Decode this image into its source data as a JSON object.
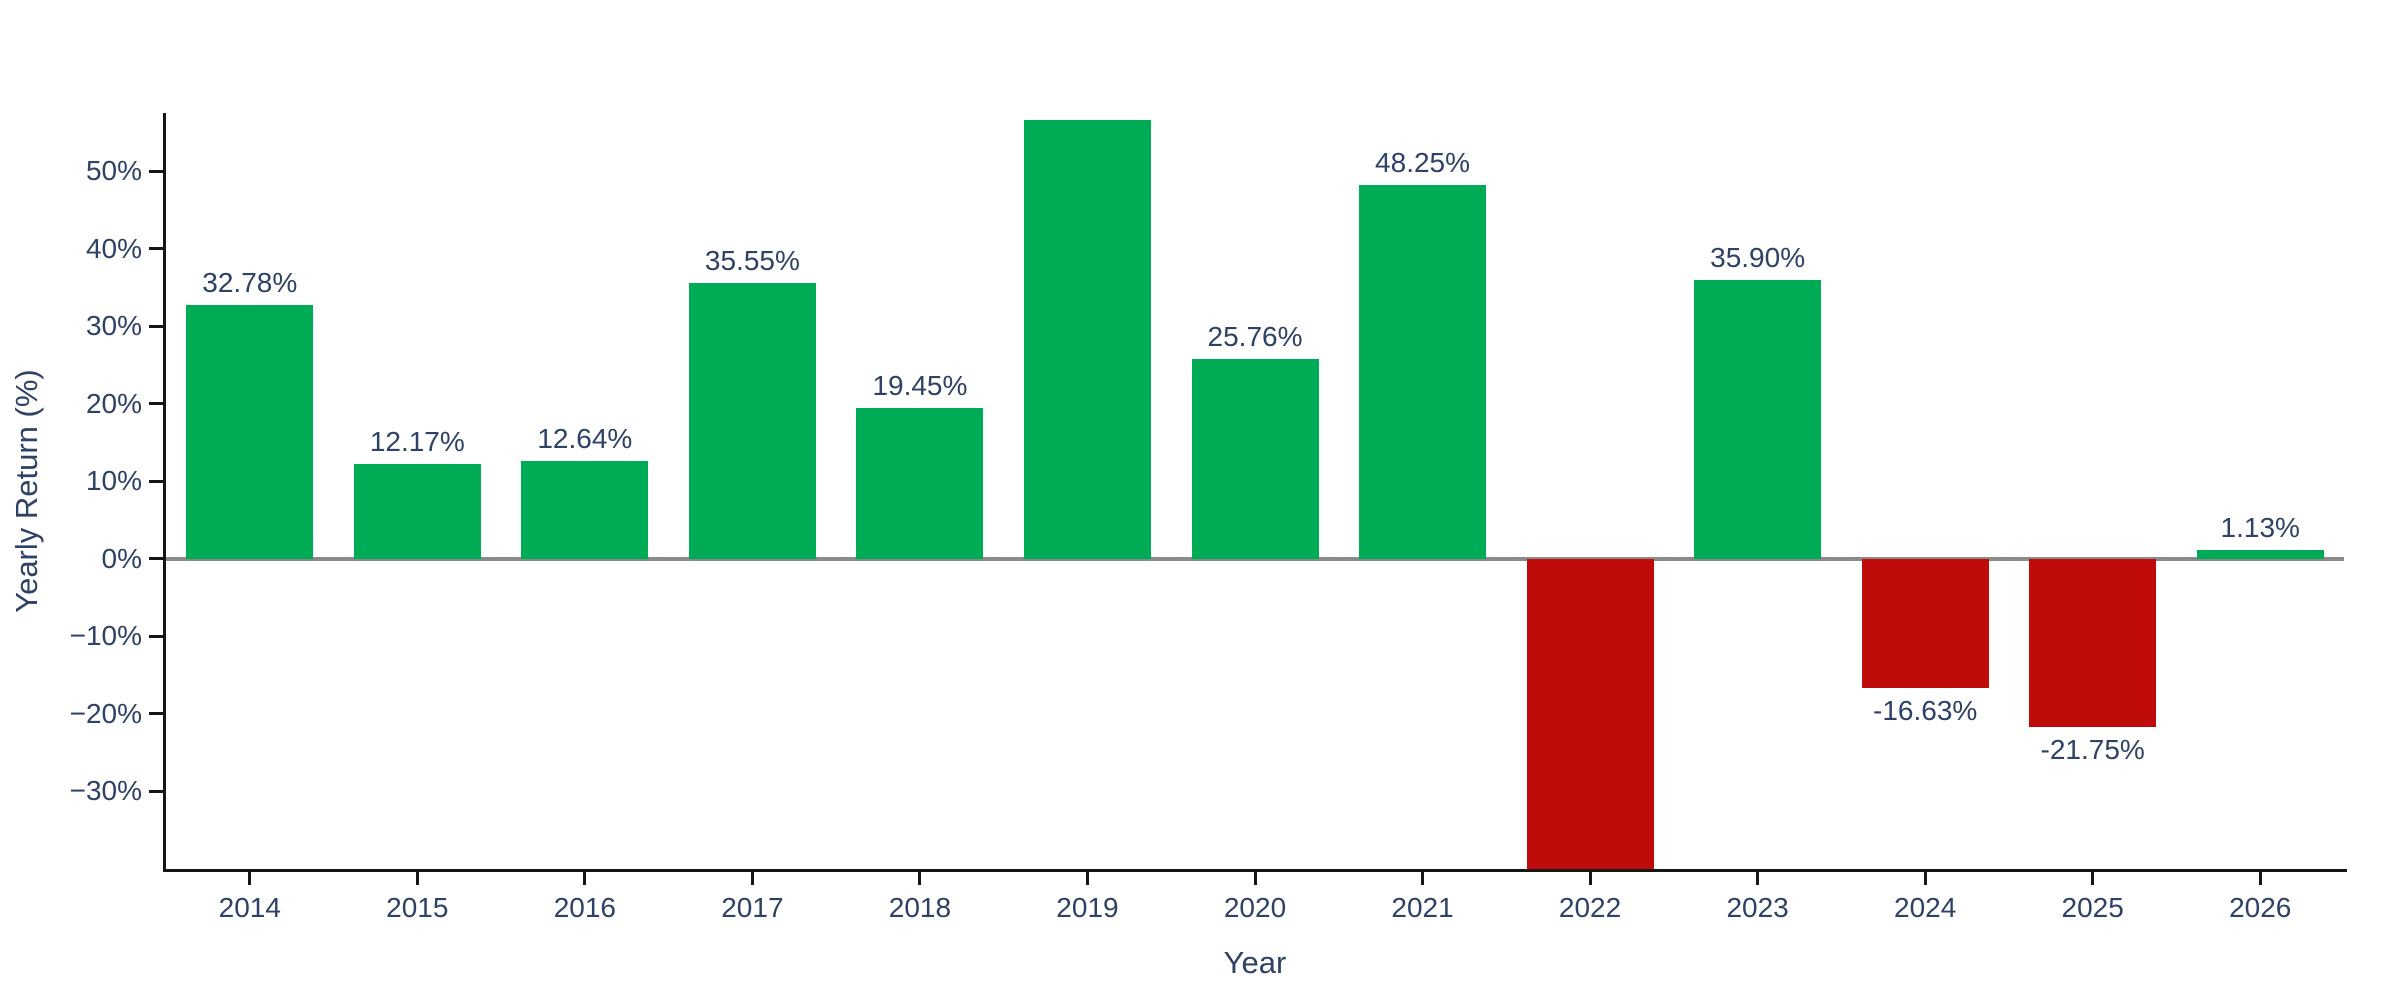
{
  "chart_data": {
    "type": "bar",
    "title": "",
    "xlabel": "Year",
    "ylabel": "Yearly Return (%)",
    "categories": [
      "2014",
      "2015",
      "2016",
      "2017",
      "2018",
      "2019",
      "2020",
      "2021",
      "2022",
      "2023",
      "2024",
      "2025",
      "2026"
    ],
    "values": [
      32.78,
      12.17,
      12.64,
      35.55,
      19.45,
      56.6,
      25.76,
      48.25,
      -40.0,
      35.9,
      -16.63,
      -21.75,
      1.13
    ],
    "bar_labels": [
      "32.78%",
      "12.17%",
      "12.64%",
      "35.55%",
      "19.45%",
      null,
      "25.76%",
      "48.25%",
      null,
      "35.90%",
      "-16.63%",
      "-21.75%",
      "1.13%"
    ],
    "clipped": [
      false,
      false,
      false,
      false,
      false,
      false,
      false,
      false,
      true,
      false,
      false,
      false,
      false
    ],
    "ylim": [
      -40,
      57.5
    ],
    "yticks": [
      50,
      40,
      30,
      20,
      10,
      0,
      -10,
      -20,
      -30
    ],
    "ytick_labels": [
      "50%",
      "40%",
      "30%",
      "20%",
      "10%",
      "0%",
      "−10%",
      "−20%",
      "−30%"
    ],
    "grid": false,
    "legend": false,
    "colors": {
      "positive_bar": "#00AB55",
      "negative_bar": "#C00B0B",
      "text": "#2e4166",
      "zero_line": "#8a8a8a",
      "axis_spine": "#161616",
      "background": "#ffffff"
    }
  }
}
